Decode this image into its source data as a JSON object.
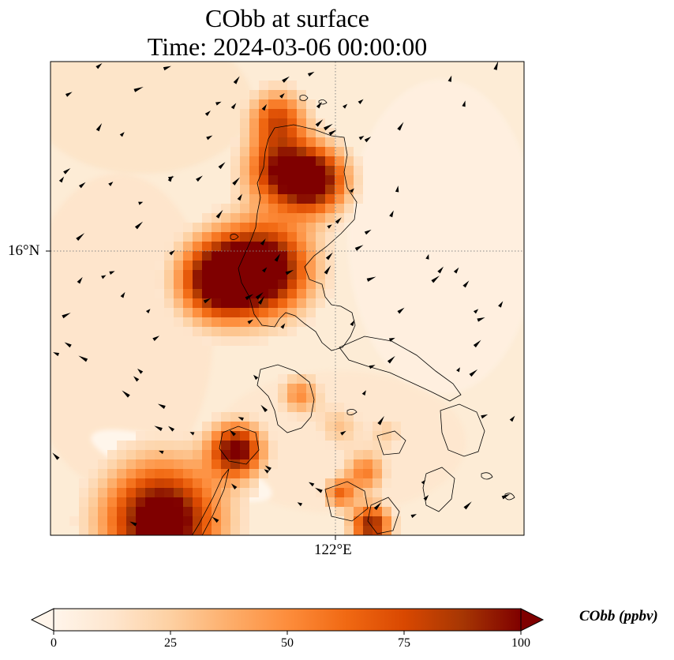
{
  "title": {
    "line1": "CObb at surface",
    "line2": "Time: 2024-03-06 00:00:00"
  },
  "axes": {
    "lat_label": "16°N",
    "lon_label": "122°E"
  },
  "colorbar": {
    "label": "CObb (ppbv)",
    "min": 0,
    "max": 100,
    "ticks": [
      {
        "value": 0,
        "label": "0"
      },
      {
        "value": 25,
        "label": "25"
      },
      {
        "value": 50,
        "label": "50"
      },
      {
        "value": 75,
        "label": "75"
      },
      {
        "value": 100,
        "label": "100"
      }
    ],
    "extend": "both",
    "colormap": [
      "#fff5eb",
      "#fee6ce",
      "#fdd0a2",
      "#fdae6b",
      "#fd8d3c",
      "#f16913",
      "#d94801",
      "#a63603",
      "#7f0000"
    ]
  },
  "map": {
    "colors": {
      "background": "#fdecd6",
      "coast": "#000000",
      "gridline": "#888888"
    }
  }
}
